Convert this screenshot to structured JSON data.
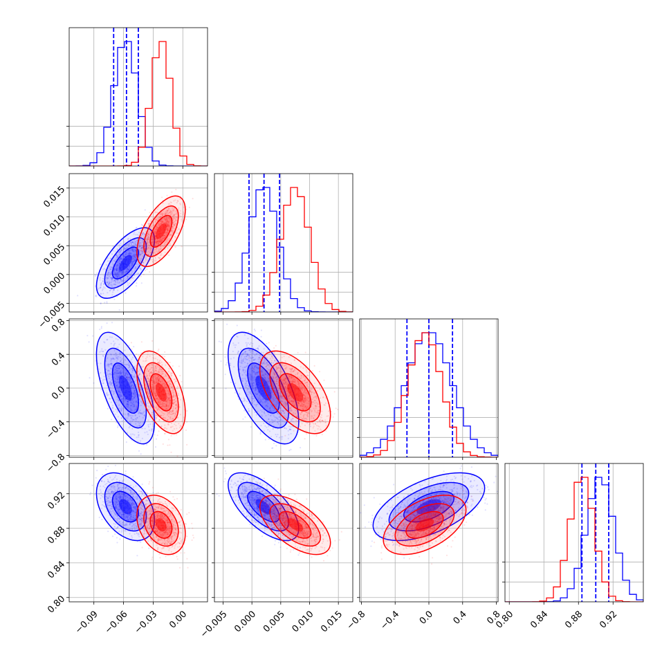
{
  "chart_data": {
    "type": "corner",
    "title": "",
    "grid": true,
    "colors": {
      "blue": "#0000ff",
      "red": "#ff0000"
    },
    "parameters": [
      {
        "range": [
          -0.115,
          0.025
        ],
        "ticks": [
          -0.09,
          -0.06,
          -0.03,
          0.0
        ],
        "tick_labels": [
          "−0.09",
          "−0.06",
          "−0.03",
          "0.00"
        ]
      },
      {
        "range": [
          -0.0065,
          0.0175
        ],
        "ticks": [
          -0.005,
          0.0,
          0.005,
          0.01,
          0.015
        ],
        "tick_labels": [
          "−0.005",
          "0.000",
          "0.005",
          "0.010",
          "0.015"
        ]
      },
      {
        "range": [
          -0.82,
          0.82
        ],
        "ticks": [
          -0.8,
          -0.4,
          0.0,
          0.4,
          0.8
        ],
        "tick_labels": [
          "−0.8",
          "−0.4",
          "0.0",
          "0.4",
          "0.8"
        ]
      },
      {
        "range": [
          0.795,
          0.955
        ],
        "ticks": [
          0.8,
          0.84,
          0.88,
          0.92
        ],
        "tick_labels": [
          "0.80",
          "0.84",
          "0.88",
          "0.92"
        ]
      }
    ],
    "series": [
      {
        "color": "blue",
        "mean": [
          -0.058,
          0.002,
          0.0,
          0.905
        ],
        "sd": [
          0.012,
          0.0025,
          0.27,
          0.016
        ],
        "corr": {
          "0-1": 0.65,
          "0-2": -0.6,
          "1-2": -0.6,
          "0-3": -0.4,
          "1-3": -0.65,
          "2-3": 0.55
        },
        "quantiles": [
          [
            -0.07,
            -0.057,
            -0.045
          ],
          [
            -0.0005,
            0.0021,
            0.0048
          ],
          [
            -0.26,
            0.0,
            0.28
          ],
          [
            0.884,
            0.9,
            0.915
          ]
        ]
      },
      {
        "color": "red",
        "mean": [
          -0.022,
          0.0075,
          -0.05,
          0.884
        ],
        "sd": [
          0.01,
          0.0025,
          0.2,
          0.014
        ],
        "corr": {
          "0-1": 0.6,
          "0-2": -0.5,
          "1-2": -0.55,
          "0-3": -0.3,
          "1-3": -0.6,
          "2-3": 0.5
        }
      }
    ]
  }
}
